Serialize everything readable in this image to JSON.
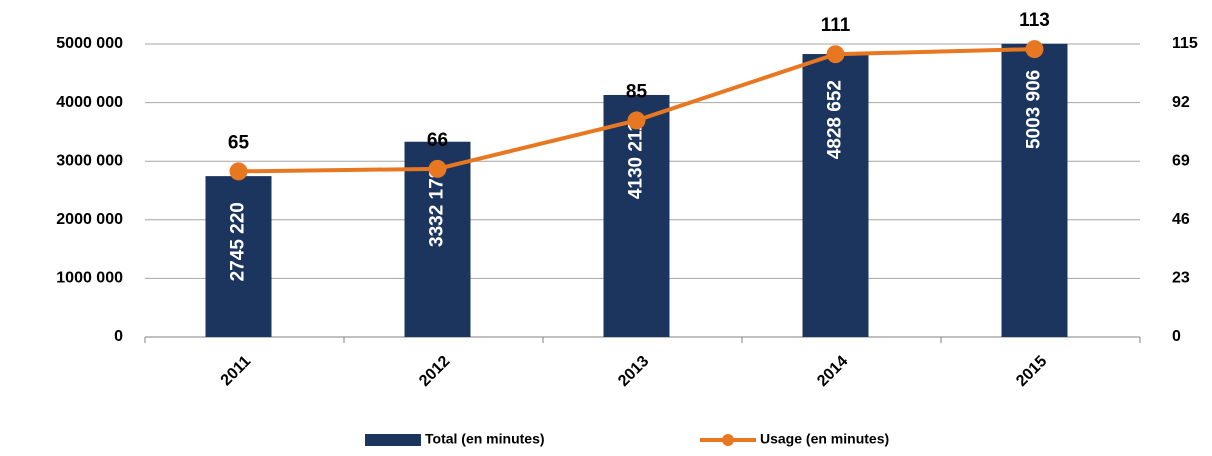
{
  "chart_data": {
    "type": "bar",
    "categories": [
      "2011",
      "2012",
      "2013",
      "2014",
      "2015"
    ],
    "series": [
      {
        "name": "Total (en minutes)",
        "type": "bar",
        "color": "#1c355e",
        "values": [
          2745220,
          3332178,
          4130211,
          4828652,
          5003906
        ],
        "value_labels": [
          "2745 220",
          "3332 178",
          "4130 211",
          "4828 652",
          "5003 906"
        ]
      },
      {
        "name": "Usage (en minutes)",
        "type": "line",
        "axis": "y2",
        "color": "#e87722",
        "values": [
          65,
          66,
          85,
          111,
          113
        ]
      }
    ],
    "ylim": [
      0,
      5000000
    ],
    "yticks": [
      0,
      {
        "value": 1000000,
        "label": "1000 000"
      },
      {
        "value": 2000000,
        "label": "2000 000"
      },
      {
        "value": 3000000,
        "label": "3000 000"
      },
      {
        "value": 4000000,
        "label": "4000 000"
      },
      {
        "value": 5000000,
        "label": "5000 000"
      }
    ],
    "y2lim": [
      0,
      115
    ],
    "y2ticks": [
      0,
      23,
      46,
      69,
      92,
      115
    ],
    "grid": true,
    "legend": "bottom"
  }
}
